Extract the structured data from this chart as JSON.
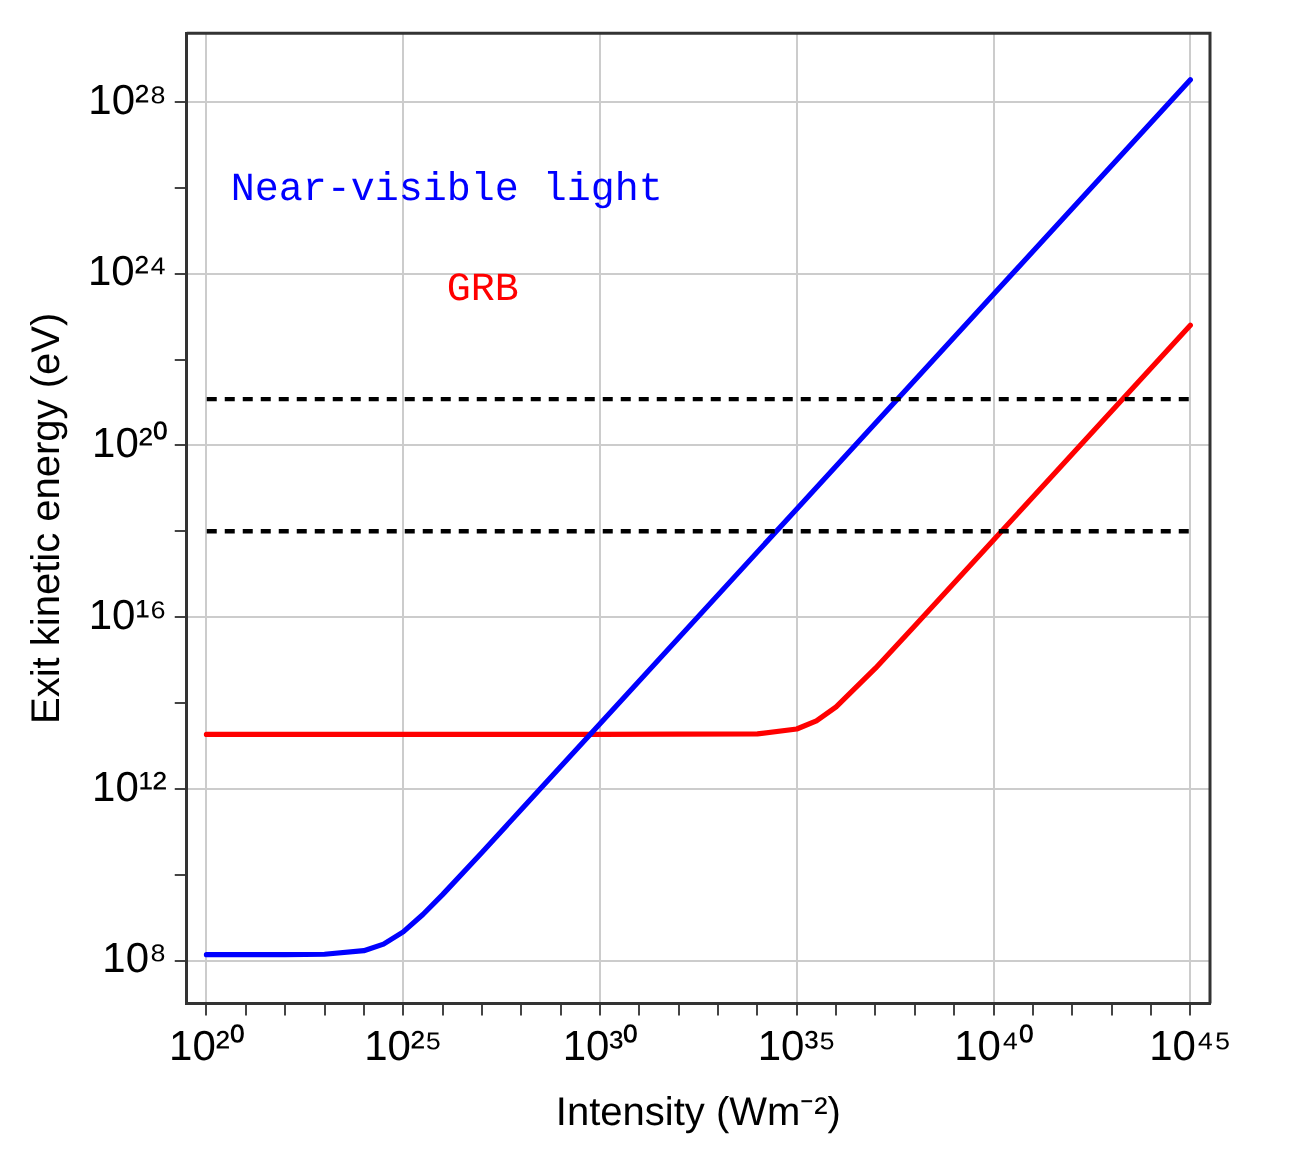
{
  "chart_data": {
    "type": "line",
    "xlabel": "Intensity (Wm⁻²)",
    "ylabel": "Exit kinetic energy (eV)",
    "log": "xy",
    "xlim": [
      3.16e+19,
      3.16e+45
    ],
    "ylim": [
      10000000.0,
      4e+29
    ],
    "xticks": [
      {
        "value": 1e+20,
        "label": "10²⁰"
      },
      {
        "value": 1e+21,
        "label": null
      },
      {
        "value": 1e+22,
        "label": null
      },
      {
        "value": 1e+23,
        "label": null
      },
      {
        "value": 1e+24,
        "label": null
      },
      {
        "value": 1e+25,
        "label": "10²⁵"
      },
      {
        "value": 1e+26,
        "label": null
      },
      {
        "value": 1e+27,
        "label": null
      },
      {
        "value": 1e+28,
        "label": null
      },
      {
        "value": 1e+29,
        "label": null
      },
      {
        "value": 1e+30,
        "label": "10³⁰"
      },
      {
        "value": 1e+31,
        "label": null
      },
      {
        "value": 1e+32,
        "label": null
      },
      {
        "value": 1e+33,
        "label": null
      },
      {
        "value": 1e+34,
        "label": null
      },
      {
        "value": 1e+35,
        "label": "10³⁵"
      },
      {
        "value": 1e+36,
        "label": null
      },
      {
        "value": 1e+37,
        "label": null
      },
      {
        "value": 1e+38,
        "label": null
      },
      {
        "value": 1e+39,
        "label": null
      },
      {
        "value": 1e+40,
        "label": "10⁴⁰"
      },
      {
        "value": 1e+41,
        "label": null
      },
      {
        "value": 1e+42,
        "label": null
      },
      {
        "value": 1e+43,
        "label": null
      },
      {
        "value": 1e+44,
        "label": null
      },
      {
        "value": 1e+45,
        "label": "10⁴⁵"
      }
    ],
    "yticks": [
      {
        "value": 100000000.0,
        "label": "10⁸"
      },
      {
        "value": 10000000000.0,
        "label": null
      },
      {
        "value": 1000000000000.0,
        "label": "10¹²"
      },
      {
        "value": 100000000000000.0,
        "label": null
      },
      {
        "value": 1e+16,
        "label": "10¹⁶"
      },
      {
        "value": 1e+18,
        "label": null
      },
      {
        "value": 1e+20,
        "label": "10²⁰"
      },
      {
        "value": 1e+22,
        "label": null
      },
      {
        "value": 1e+24,
        "label": "10²⁴"
      },
      {
        "value": 1e+26,
        "label": null
      },
      {
        "value": 1e+28,
        "label": "10²⁸"
      }
    ],
    "grid": true,
    "legend": false,
    "marker": "none",
    "line_style": "solid",
    "series": [
      {
        "name": "Near-visible light",
        "color": "#0000ff",
        "x": [
          1e+20,
          1e+22,
          1e+23,
          1e+24,
          3.16e+24,
          1e+25,
          3.16e+25,
          1e+26,
          1e+27,
          1e+28,
          1e+30,
          1e+35,
          1e+40,
          1e+45
        ],
        "values": [
          138000000.0,
          138000000.0,
          141000000.0,
          171000000.0,
          243000000.0,
          469000000.0,
          1190000000.0,
          3450000000.0,
          33200000000.0,
          331000000000.0,
          33100000000000.0,
          3.31e+18,
          3.31e+23,
          3.31e+28
        ]
      },
      {
        "name": "GRB",
        "color": "#ff0000",
        "x": [
          1e+20,
          1e+30,
          1e+34,
          1e+35,
          3.16e+35,
          1e+36,
          1e+37,
          1e+38,
          1e+40,
          1e+45
        ],
        "values": [
          18600000000000.0,
          18600000000000.0,
          19200000000000.0,
          24900000000000.0,
          38600000000000.0,
          81700000000000.0,
          650000000000000.0,
          6310000000000000.0,
          6.31e+17,
          6.31e+22
        ]
      }
    ],
    "ref_lines": [
      {
        "axis": "y",
        "value": 1.2e+21,
        "color": "#000000",
        "line_style": "dashed"
      },
      {
        "axis": "y",
        "value": 1e+18,
        "color": "#000000",
        "line_style": "dashed"
      }
    ]
  }
}
